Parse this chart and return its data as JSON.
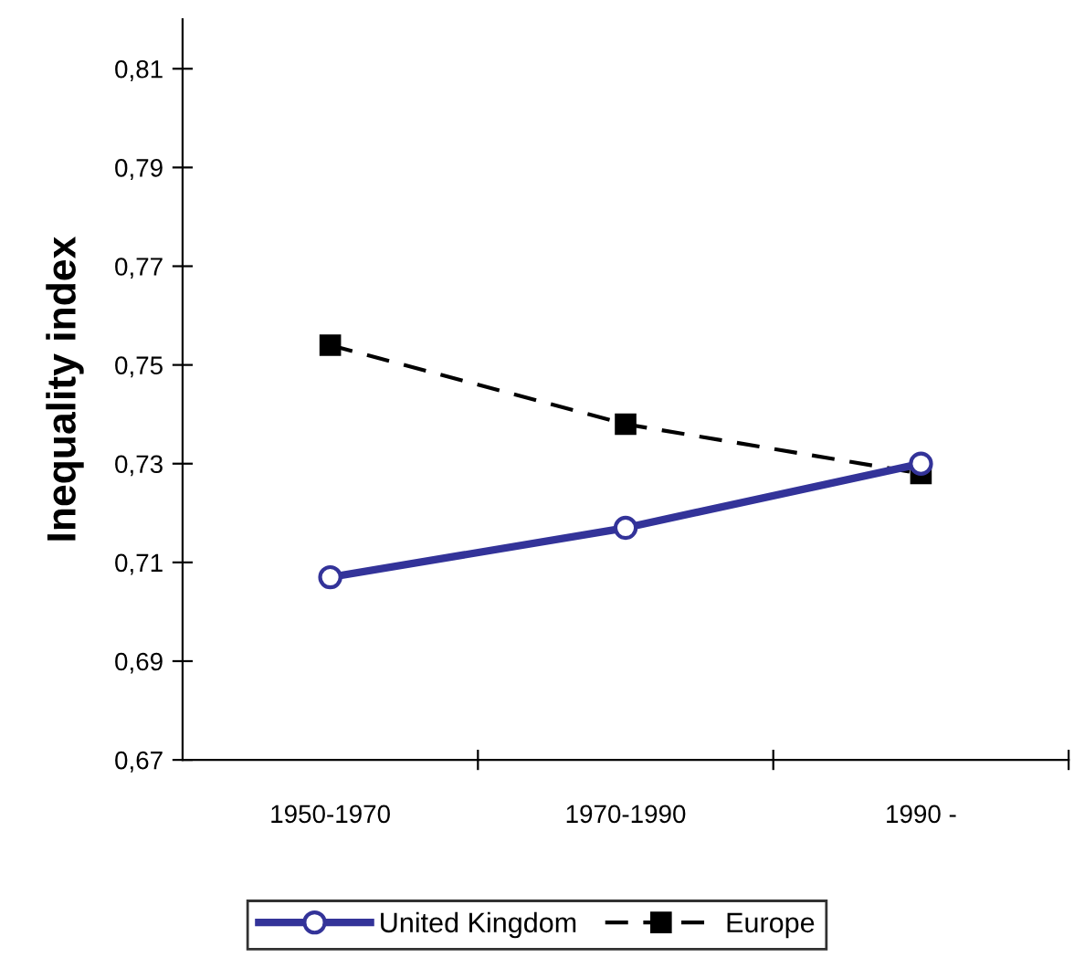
{
  "chart_data": {
    "type": "line",
    "ylabel": "Inequality index",
    "categories": [
      "1950-1970",
      "1970-1990",
      "1990 -"
    ],
    "series": [
      {
        "name": "United Kingdom",
        "color": "#333399",
        "values": [
          0.707,
          0.717,
          0.73
        ],
        "marker": "circle",
        "line_style": "solid"
      },
      {
        "name": "Europe",
        "color": "#000000",
        "values": [
          0.754,
          0.738,
          0.728
        ],
        "marker": "square",
        "line_style": "dashed"
      }
    ],
    "ylim": [
      0.67,
      0.82
    ],
    "yticks": [
      {
        "value": 0.67,
        "label": "0,67"
      },
      {
        "value": 0.69,
        "label": "0,69"
      },
      {
        "value": 0.71,
        "label": "0,71"
      },
      {
        "value": 0.73,
        "label": "0,73"
      },
      {
        "value": 0.75,
        "label": "0,75"
      },
      {
        "value": 0.77,
        "label": "0,77"
      },
      {
        "value": 0.79,
        "label": "0,79"
      },
      {
        "value": 0.81,
        "label": "0,81"
      }
    ],
    "grid": false,
    "legend": "bottom"
  }
}
